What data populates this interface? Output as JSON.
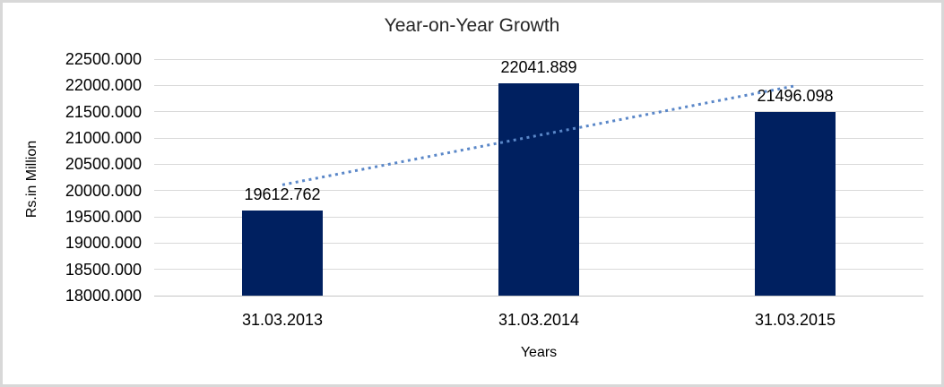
{
  "chart_data": {
    "type": "bar",
    "title": "Year-on-Year Growth",
    "xlabel": "Years",
    "ylabel": "Rs.in Million",
    "categories": [
      "31.03.2013",
      "31.03.2014",
      "31.03.2015"
    ],
    "values": [
      19612.762,
      22041.889,
      21496.098
    ],
    "data_labels": [
      "19612.762",
      "22041.889",
      "21496.098"
    ],
    "ylim": [
      18000,
      22500
    ],
    "ytick_step": 500,
    "ytick_labels": [
      "18000.000",
      "18500.000",
      "19000.000",
      "19500.000",
      "20000.000",
      "20500.000",
      "21000.000",
      "21500.000",
      "22000.000",
      "22500.000"
    ],
    "grid": true,
    "legend": "none",
    "bar_color": "#002060",
    "gridline_color": "#D9D9D9",
    "axis_line_color": "#C6C6C6",
    "text_color": "#000000",
    "frame_color": "#D8D8D8",
    "trendline": {
      "type": "linear",
      "style": "dotted",
      "color": "#5A87C8"
    }
  }
}
